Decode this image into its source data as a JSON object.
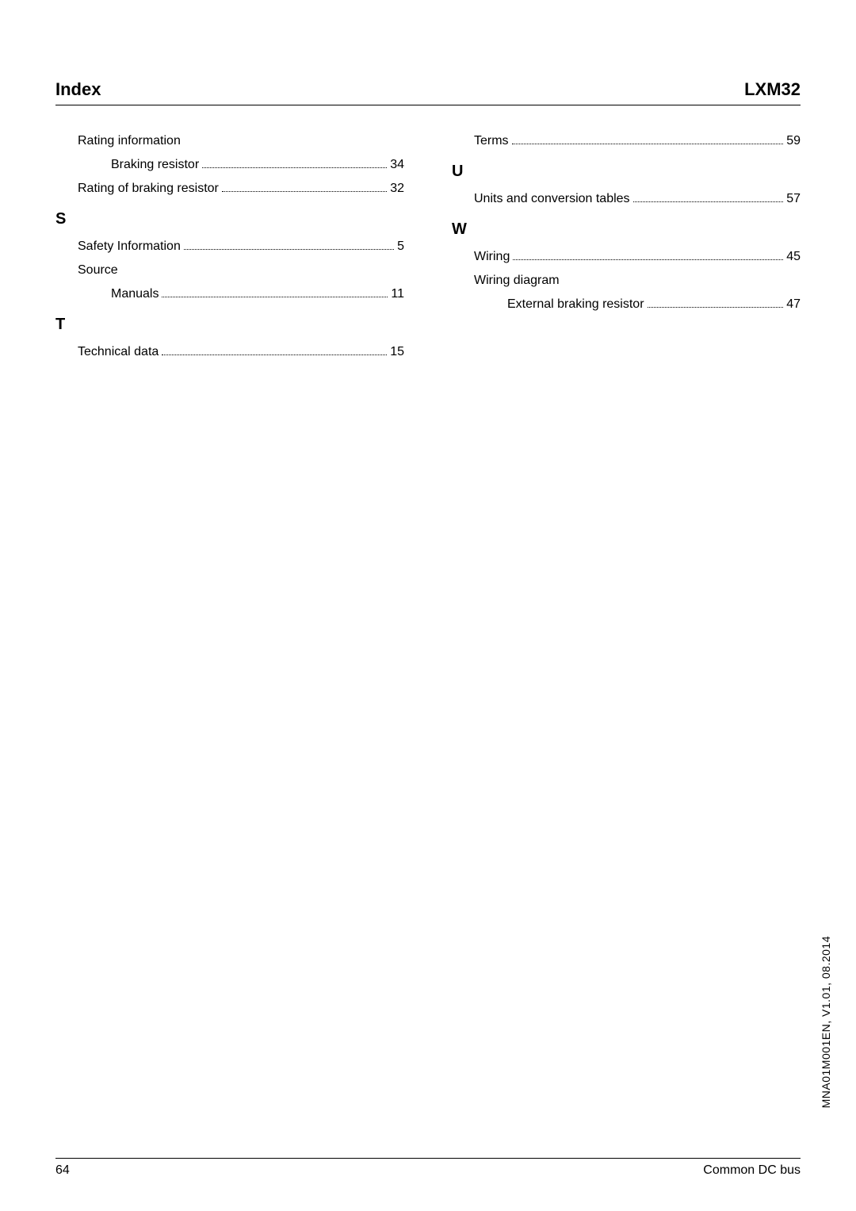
{
  "header": {
    "left": "Index",
    "right": "LXM32"
  },
  "left_col": [
    {
      "type": "entry",
      "level": 1,
      "label": "Rating information",
      "page": null
    },
    {
      "type": "entry",
      "level": 2,
      "label": "Braking resistor",
      "page": "34"
    },
    {
      "type": "entry",
      "level": 1,
      "label": "Rating of braking resistor",
      "page": "32"
    },
    {
      "type": "letter",
      "text": "S"
    },
    {
      "type": "entry",
      "level": 1,
      "label": "Safety Information",
      "page": "5"
    },
    {
      "type": "entry",
      "level": 1,
      "label": "Source",
      "page": null
    },
    {
      "type": "entry",
      "level": 2,
      "label": "Manuals",
      "page": "11"
    },
    {
      "type": "letter",
      "text": "T"
    },
    {
      "type": "entry",
      "level": 1,
      "label": "Technical data",
      "page": "15"
    }
  ],
  "right_col": [
    {
      "type": "entry",
      "level": 1,
      "label": "Terms",
      "page": "59"
    },
    {
      "type": "letter",
      "text": "U"
    },
    {
      "type": "entry",
      "level": 1,
      "label": "Units and conversion tables",
      "page": "57"
    },
    {
      "type": "letter",
      "text": "W"
    },
    {
      "type": "entry",
      "level": 1,
      "label": "Wiring",
      "page": "45"
    },
    {
      "type": "entry",
      "level": 1,
      "label": "Wiring diagram",
      "page": null
    },
    {
      "type": "entry",
      "level": 2,
      "label": "External braking resistor",
      "page": "47"
    }
  ],
  "footer": {
    "page_num": "64",
    "right_text": "Common DC bus"
  },
  "side_label": "MNA01M001EN, V1.01, 08.2014"
}
